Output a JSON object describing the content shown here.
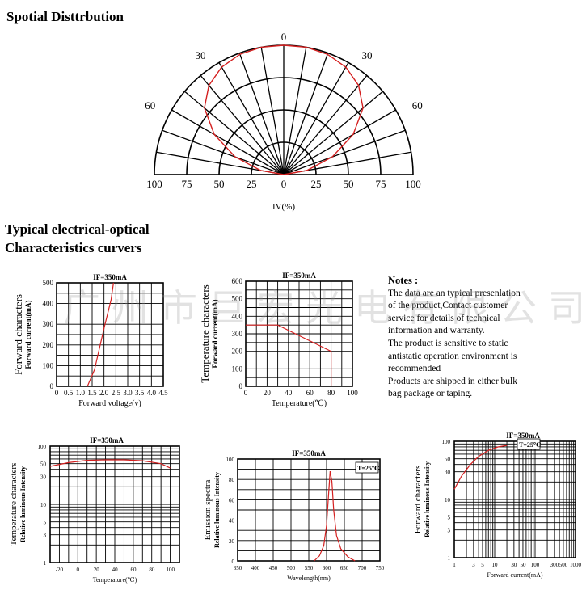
{
  "headings": {
    "spatial": "Spotial Disttrbution",
    "typical_line1": "Typical electrical-optical",
    "typical_line2": "Characteristics curvers"
  },
  "watermark": "广州市巨宏光电有限公司",
  "notes": {
    "title": "Notes :",
    "lines": [
      "The data are an typical presenlation",
      "  of the product,Contact customer",
      "  service for details of technical",
      "  information and warranty.",
      "The product is sensitive to static",
      "  antistatic operation environment is",
      "  recommended",
      "Products are shipped in either bulk",
      "  bag package or taping."
    ]
  },
  "colors": {
    "curve": "#d42020",
    "grid": "#000000",
    "background": "#ffffff"
  },
  "chart_data": [
    {
      "type": "polar",
      "angle_labels": [
        "0",
        "30",
        "30",
        "60",
        "60"
      ],
      "radial_tick_labels": [
        "100",
        "75",
        "50",
        "25",
        "0",
        "25",
        "50",
        "75",
        "100"
      ],
      "xlabel": "IV(%)",
      "angles_deg": [
        -90,
        -80,
        -70,
        -60,
        -50,
        -40,
        -30,
        -20,
        -10,
        0,
        10,
        20,
        30,
        40,
        50,
        60,
        70,
        80,
        90
      ],
      "intensity": [
        0,
        18,
        40,
        62,
        80,
        90,
        96,
        99,
        100,
        100,
        100,
        99,
        96,
        90,
        80,
        62,
        40,
        18,
        0
      ]
    },
    {
      "type": "line",
      "title": "IF=350mA",
      "ylabel": "Forward characters",
      "ylabel2": "Forward current(mA)",
      "xlabel": "Forward voltage(v)",
      "xlim": [
        0,
        4.5
      ],
      "ylim": [
        0,
        500
      ],
      "x_ticks": [
        "0",
        "0.5",
        "1.0",
        "1.5",
        "2.0",
        "2.5",
        "3.0",
        "3.5",
        "4.0",
        "4.5"
      ],
      "y_ticks": [
        "0",
        "100",
        "200",
        "300",
        "400",
        "500"
      ],
      "x": [
        1.3,
        1.6,
        2.0,
        2.3,
        2.4
      ],
      "y": [
        0,
        80,
        280,
        420,
        500
      ]
    },
    {
      "type": "line",
      "title": "IF=350mA",
      "ylabel": "Temperature characters",
      "ylabel2": "Forward current(mA)",
      "xlabel": "Temperature(℃)",
      "xlim": [
        0,
        100
      ],
      "ylim": [
        0,
        600
      ],
      "x_ticks": [
        "0",
        "20",
        "40",
        "60",
        "80",
        "100"
      ],
      "y_ticks": [
        "0",
        "100",
        "200",
        "300",
        "400",
        "500",
        "600"
      ],
      "x": [
        0,
        30,
        80,
        80
      ],
      "y": [
        350,
        350,
        200,
        0
      ]
    },
    {
      "type": "line",
      "title": "IF=350mA",
      "ylabel": "Temperature characters",
      "ylabel2": "Relative luminous Intensity",
      "xlabel": "Temperature(℃)",
      "y_scale": "log",
      "xlim": [
        -40,
        100
      ],
      "ylim": [
        1,
        100
      ],
      "x_ticks": [
        "-20",
        "0",
        "20",
        "40",
        "60",
        "80",
        "100"
      ],
      "y_ticks": [
        "1",
        "3",
        "5",
        "10",
        "30",
        "50",
        "100"
      ],
      "x": [
        -40,
        -20,
        0,
        20,
        40,
        60,
        80,
        90
      ],
      "y": [
        45,
        52,
        57,
        58,
        58,
        56,
        50,
        42
      ]
    },
    {
      "type": "line",
      "title": "IF=350mA",
      "ylabel": "Emission spectra",
      "ylabel2": "Relative luminous Intensity",
      "xlabel": "Wavelength(nm)",
      "annotation": "T=25℃",
      "xlim": [
        350,
        750
      ],
      "ylim": [
        0,
        100
      ],
      "x_ticks": [
        "350",
        "400",
        "450",
        "500",
        "550",
        "600",
        "650",
        "700",
        "750"
      ],
      "y_ticks": [
        "0",
        "20",
        "40",
        "60",
        "80",
        "100"
      ],
      "x": [
        565,
        580,
        592,
        600,
        605,
        610,
        615,
        620,
        628,
        640,
        660,
        680
      ],
      "y": [
        0,
        5,
        15,
        35,
        62,
        88,
        78,
        50,
        25,
        12,
        4,
        0
      ]
    },
    {
      "type": "line",
      "title": "IF=350mA",
      "ylabel": "Forward characters",
      "ylabel2": "Relative luminous Intensity",
      "xlabel": "Forward current(mA)",
      "annotation": "T=25℃",
      "x_scale": "log",
      "y_scale": "log",
      "xlim": [
        1,
        1000
      ],
      "ylim": [
        1,
        100
      ],
      "x_ticks": [
        "1",
        "3",
        "5",
        "10",
        "30",
        "50",
        "100",
        "300",
        "500",
        "1000"
      ],
      "y_ticks": [
        "1",
        "3",
        "5",
        "10",
        "30",
        "50",
        "100"
      ],
      "x": [
        1,
        1.5,
        2.5,
        4,
        7,
        12,
        20
      ],
      "y": [
        15,
        25,
        40,
        55,
        70,
        80,
        85
      ]
    }
  ]
}
